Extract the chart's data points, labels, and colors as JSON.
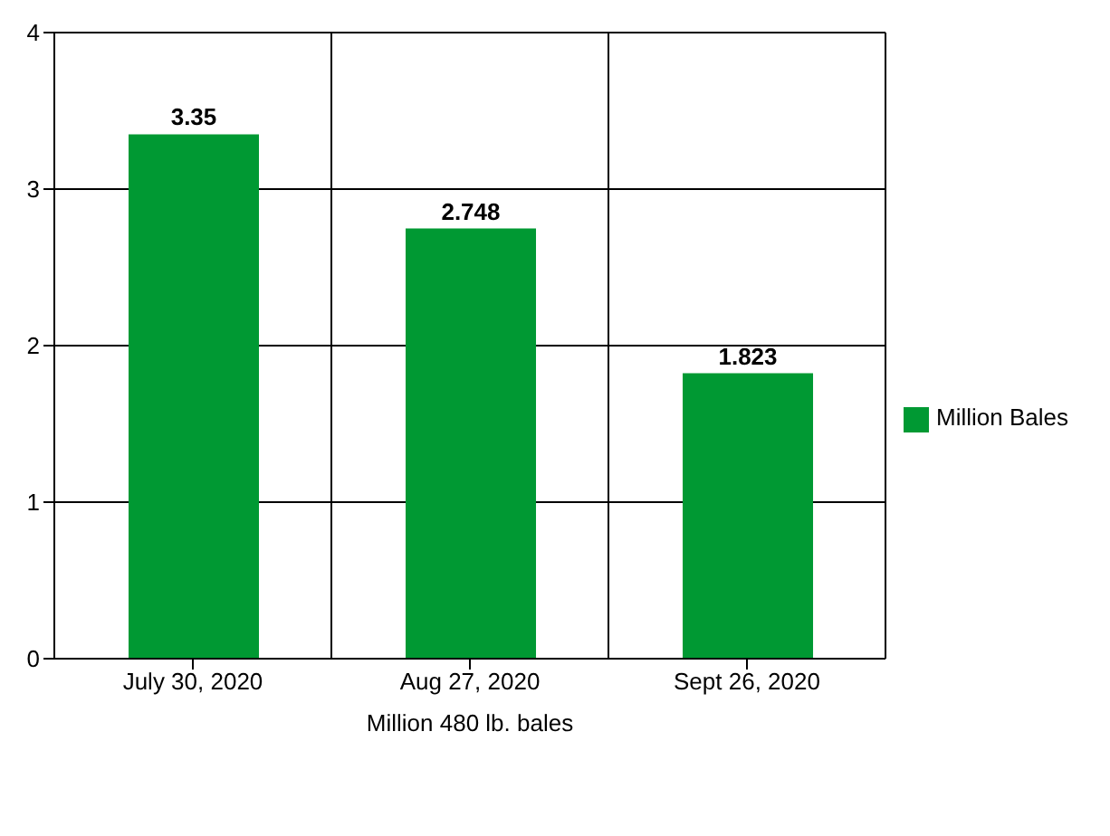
{
  "chart_data": {
    "type": "bar",
    "xlabel": "Million 480 lb. bales",
    "categories": [
      "July 30, 2020",
      "Aug 27, 2020",
      "Sept 26, 2020"
    ],
    "series": [
      {
        "name": "Million Bales",
        "color": "#009933",
        "values": [
          3.35,
          2.748,
          1.823
        ]
      }
    ],
    "ylim": [
      0,
      4
    ],
    "yticks": [
      0,
      1,
      2,
      3,
      4
    ],
    "grid": true,
    "legend": "right",
    "data_labels": true
  }
}
